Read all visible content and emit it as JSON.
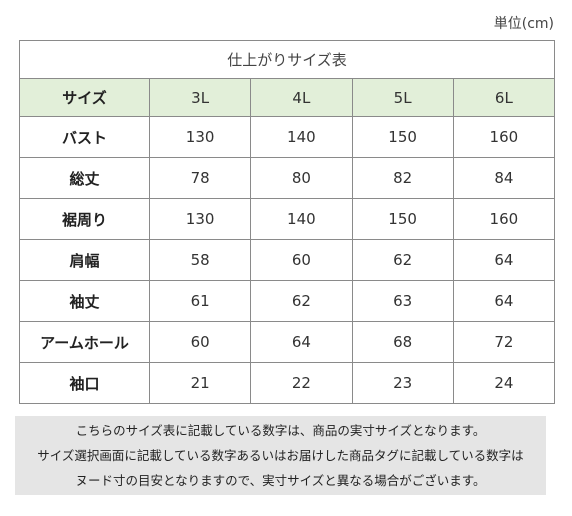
{
  "unit_label": "単位(cm)",
  "table": {
    "title": "仕上がりサイズ表",
    "header_label": "サイズ",
    "sizes": [
      "3L",
      "4L",
      "5L",
      "6L"
    ],
    "rows": [
      {
        "label": "バスト",
        "values": [
          "130",
          "140",
          "150",
          "160"
        ]
      },
      {
        "label": "総丈",
        "values": [
          "78",
          "80",
          "82",
          "84"
        ]
      },
      {
        "label": "裾周り",
        "values": [
          "130",
          "140",
          "150",
          "160"
        ]
      },
      {
        "label": "肩幅",
        "values": [
          "58",
          "60",
          "62",
          "64"
        ]
      },
      {
        "label": "袖丈",
        "values": [
          "61",
          "62",
          "63",
          "64"
        ]
      },
      {
        "label": "アームホール",
        "values": [
          "60",
          "64",
          "68",
          "72"
        ]
      },
      {
        "label": "袖口",
        "values": [
          "21",
          "22",
          "23",
          "24"
        ]
      }
    ]
  },
  "note": {
    "lines": [
      "こちらのサイズ表に記載している数字は、商品の実寸サイズとなります。",
      "サイズ選択画面に記載している数字あるいはお届けした商品タグに記載している数字は",
      "ヌード寸の目安となりますので、実寸サイズと異なる場合がございます。"
    ]
  }
}
